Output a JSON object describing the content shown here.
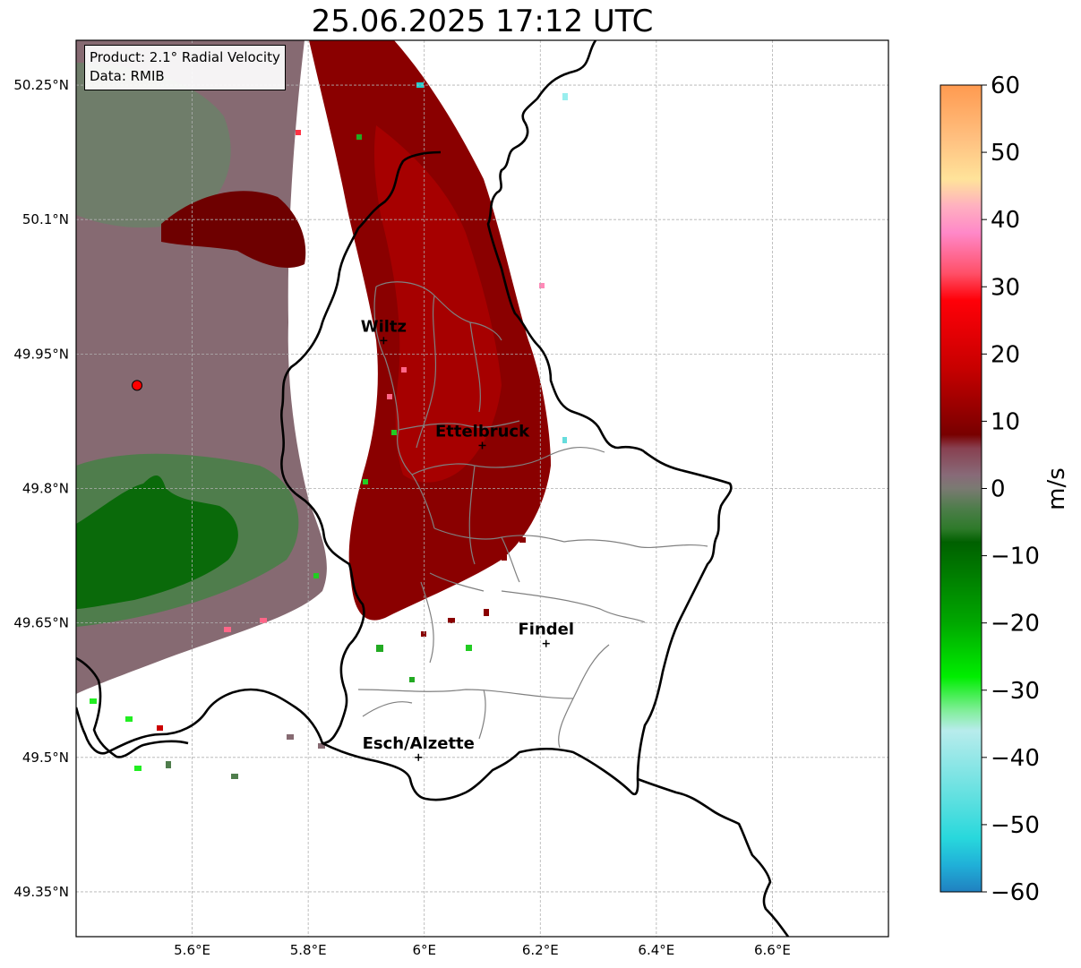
{
  "title": "25.06.2025 17:12 UTC",
  "info_box": {
    "product": "Product: 2.1° Radial Velocity",
    "source": "Data: RMIB"
  },
  "map": {
    "lon_range": [
      5.4,
      6.8
    ],
    "lat_range": [
      49.3,
      50.3
    ],
    "lon_ticks": [
      {
        "value": 5.6,
        "label": "5.6°E"
      },
      {
        "value": 5.8,
        "label": "5.8°E"
      },
      {
        "value": 6.0,
        "label": "6°E"
      },
      {
        "value": 6.2,
        "label": "6.2°E"
      },
      {
        "value": 6.4,
        "label": "6.4°E"
      },
      {
        "value": 6.6,
        "label": "6.6°E"
      }
    ],
    "lat_ticks": [
      {
        "value": 50.25,
        "label": "50.25°N"
      },
      {
        "value": 50.1,
        "label": "50.1°N"
      },
      {
        "value": 49.95,
        "label": "49.95°N"
      },
      {
        "value": 49.8,
        "label": "49.8°N"
      },
      {
        "value": 49.65,
        "label": "49.65°N"
      },
      {
        "value": 49.5,
        "label": "49.5°N"
      },
      {
        "value": 49.35,
        "label": "49.35°N"
      }
    ],
    "radar_site": {
      "lon": 5.505,
      "lat": 49.915
    },
    "cities": [
      {
        "name": "Wiltz",
        "lon": 5.93,
        "lat": 49.965
      },
      {
        "name": "Ettelbruck",
        "lon": 6.1,
        "lat": 49.848
      },
      {
        "name": "Findel",
        "lon": 6.21,
        "lat": 49.627
      },
      {
        "name": "Esch/Alzette",
        "lon": 5.99,
        "lat": 49.5
      }
    ]
  },
  "colorbar": {
    "label": "m/s",
    "min": -60,
    "max": 60,
    "ticks": [
      {
        "value": 60,
        "label": "60"
      },
      {
        "value": 50,
        "label": "50"
      },
      {
        "value": 40,
        "label": "40"
      },
      {
        "value": 30,
        "label": "30"
      },
      {
        "value": 20,
        "label": "20"
      },
      {
        "value": 10,
        "label": "10"
      },
      {
        "value": 0,
        "label": "0"
      },
      {
        "value": -10,
        "label": "−10"
      },
      {
        "value": -20,
        "label": "−20"
      },
      {
        "value": -30,
        "label": "−30"
      },
      {
        "value": -40,
        "label": "−40"
      },
      {
        "value": -50,
        "label": "−50"
      },
      {
        "value": -60,
        "label": "−60"
      }
    ],
    "color_stops": [
      {
        "value": 60,
        "color": "#ff9a50"
      },
      {
        "value": 52,
        "color": "#ffc080"
      },
      {
        "value": 46,
        "color": "#ffe39a"
      },
      {
        "value": 42,
        "color": "#ffb0c0"
      },
      {
        "value": 38,
        "color": "#ff88c8"
      },
      {
        "value": 32,
        "color": "#ff5068"
      },
      {
        "value": 28,
        "color": "#ff0008"
      },
      {
        "value": 18,
        "color": "#c80000"
      },
      {
        "value": 8,
        "color": "#780000"
      },
      {
        "value": 6,
        "color": "#884050"
      },
      {
        "value": 2,
        "color": "#886a78"
      },
      {
        "value": 0,
        "color": "#7a7a72"
      },
      {
        "value": -3,
        "color": "#4d7d4a"
      },
      {
        "value": -6,
        "color": "#2e7a2a"
      },
      {
        "value": -8,
        "color": "#006000"
      },
      {
        "value": -20,
        "color": "#00a800"
      },
      {
        "value": -28,
        "color": "#00ee00"
      },
      {
        "value": -33,
        "color": "#80ee98"
      },
      {
        "value": -36,
        "color": "#b8ecec"
      },
      {
        "value": -46,
        "color": "#60e0e0"
      },
      {
        "value": -52,
        "color": "#28d8dc"
      },
      {
        "value": -56,
        "color": "#20b0d8"
      },
      {
        "value": -60,
        "color": "#2080c0"
      }
    ]
  },
  "colors": {
    "background": "#ffffff",
    "border": "#000000",
    "commune_border": "#808080",
    "radar_site": "#ff0000"
  }
}
